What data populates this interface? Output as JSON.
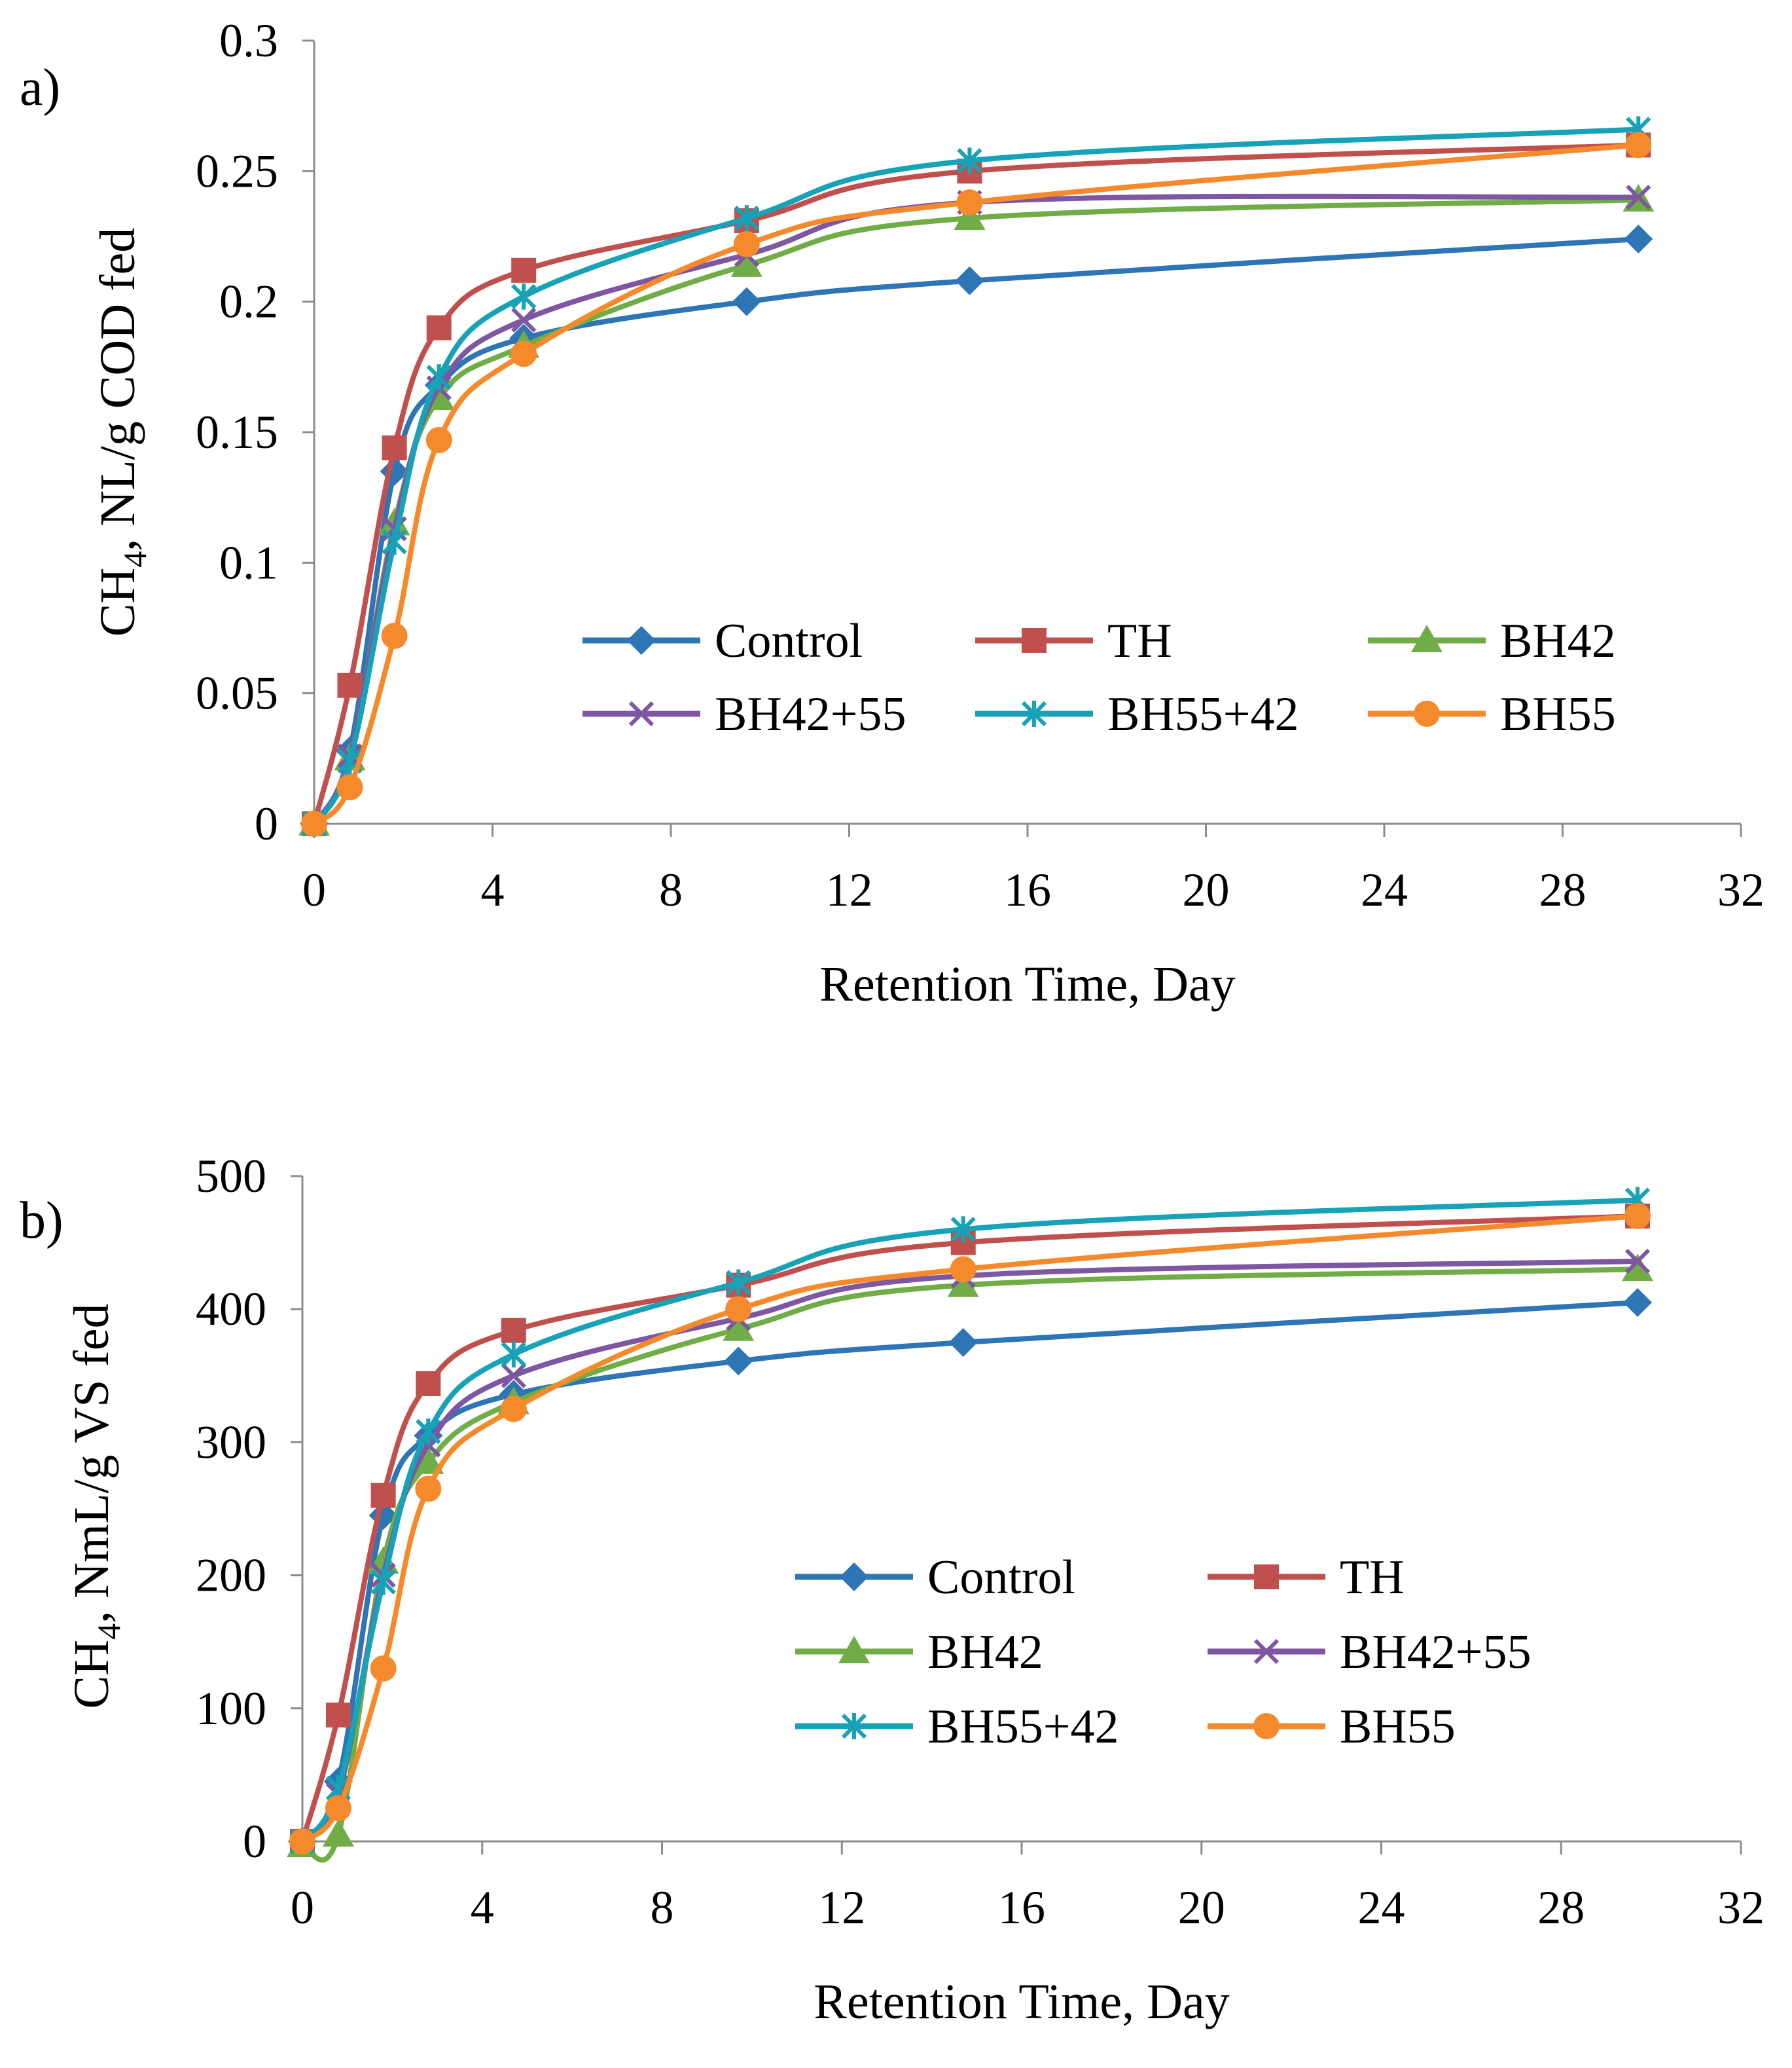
{
  "chart_data": [
    {
      "type": "line",
      "panel_label": "a)",
      "title": "",
      "xlabel": "Retention Time, Day",
      "ylabel": {
        "base": "CH",
        "sub": "4",
        "rest": ", NL/g COD fed"
      },
      "xlim": [
        0,
        32
      ],
      "ylim": [
        0,
        0.3
      ],
      "xticks": [
        "0",
        "4",
        "8",
        "12",
        "16",
        "20",
        "24",
        "28",
        "32"
      ],
      "yticks": [
        "0",
        "0.05",
        "0.1",
        "0.15",
        "0.2",
        "0.25",
        "0.3"
      ],
      "legend_columns": 3,
      "series": [
        {
          "name": "Control",
          "color": "#2E75B6",
          "marker": "diamond",
          "x": [
            0,
            0.8,
            1.8,
            2.8,
            4.7,
            9.7,
            14.7,
            29.7
          ],
          "y": [
            0,
            0.028,
            0.135,
            0.168,
            0.186,
            0.2,
            0.208,
            0.224
          ]
        },
        {
          "name": "TH",
          "color": "#C0504D",
          "marker": "square",
          "x": [
            0,
            0.8,
            1.8,
            2.8,
            4.7,
            9.7,
            14.7,
            29.7
          ],
          "y": [
            0,
            0.053,
            0.144,
            0.19,
            0.212,
            0.231,
            0.25,
            0.26
          ]
        },
        {
          "name": "BH42",
          "color": "#70AD47",
          "marker": "triangle",
          "x": [
            0,
            0.8,
            1.8,
            2.8,
            4.7,
            9.7,
            14.7,
            29.7
          ],
          "y": [
            0,
            0.025,
            0.115,
            0.163,
            0.183,
            0.214,
            0.232,
            0.239
          ]
        },
        {
          "name": "BH42+55",
          "color": "#7E57A3",
          "marker": "x",
          "x": [
            0,
            0.8,
            1.8,
            2.8,
            4.7,
            9.7,
            14.7,
            29.7
          ],
          "y": [
            0,
            0.026,
            0.113,
            0.167,
            0.193,
            0.218,
            0.238,
            0.24
          ]
        },
        {
          "name": "BH55+42",
          "color": "#17A2B8",
          "marker": "asterisk",
          "x": [
            0,
            0.8,
            1.8,
            2.8,
            4.7,
            9.7,
            14.7,
            29.7
          ],
          "y": [
            0,
            0.024,
            0.108,
            0.171,
            0.202,
            0.232,
            0.254,
            0.266
          ]
        },
        {
          "name": "BH55",
          "color": "#F58A2C",
          "marker": "circle",
          "x": [
            0,
            0.8,
            1.8,
            2.8,
            4.7,
            9.7,
            14.7,
            29.7
          ],
          "y": [
            0,
            0.014,
            0.072,
            0.147,
            0.18,
            0.222,
            0.238,
            0.26
          ]
        }
      ]
    },
    {
      "type": "line",
      "panel_label": "b)",
      "title": "",
      "xlabel": "Retention Time, Day",
      "ylabel": {
        "base": "CH",
        "sub": "4",
        "rest": ", NmL/g VS fed"
      },
      "xlim": [
        0,
        32
      ],
      "ylim": [
        0,
        500
      ],
      "xticks": [
        "0",
        "4",
        "8",
        "12",
        "16",
        "20",
        "24",
        "28",
        "32"
      ],
      "yticks": [
        "0",
        "100",
        "200",
        "300",
        "400",
        "500"
      ],
      "legend_columns": 2,
      "series": [
        {
          "name": "Control",
          "color": "#2E75B6",
          "marker": "diamond",
          "x": [
            0,
            0.8,
            1.8,
            2.8,
            4.7,
            9.7,
            14.7,
            29.7
          ],
          "y": [
            0,
            45,
            245,
            305,
            336,
            361,
            375,
            405
          ]
        },
        {
          "name": "TH",
          "color": "#C0504D",
          "marker": "square",
          "x": [
            0,
            0.8,
            1.8,
            2.8,
            4.7,
            9.7,
            14.7,
            29.7
          ],
          "y": [
            0,
            95,
            260,
            344,
            384,
            418,
            450,
            470
          ]
        },
        {
          "name": "BH42",
          "color": "#70AD47",
          "marker": "triangle",
          "x": [
            0,
            0.8,
            1.8,
            2.8,
            4.7,
            9.7,
            14.7,
            29.7
          ],
          "y": [
            -3,
            5,
            210,
            285,
            330,
            385,
            418,
            430
          ]
        },
        {
          "name": "BH42+55",
          "color": "#7E57A3",
          "marker": "x",
          "x": [
            0,
            0.8,
            1.8,
            2.8,
            4.7,
            9.7,
            14.7,
            29.7
          ],
          "y": [
            0,
            35,
            200,
            298,
            350,
            393,
            425,
            436
          ]
        },
        {
          "name": "BH55+42",
          "color": "#17A2B8",
          "marker": "asterisk",
          "x": [
            0,
            0.8,
            1.8,
            2.8,
            4.7,
            9.7,
            14.7,
            29.7
          ],
          "y": [
            0,
            40,
            195,
            308,
            366,
            420,
            460,
            482
          ]
        },
        {
          "name": "BH55",
          "color": "#F58A2C",
          "marker": "circle",
          "x": [
            0,
            0.8,
            1.8,
            2.8,
            4.7,
            9.7,
            14.7,
            29.7
          ],
          "y": [
            0,
            25,
            130,
            265,
            325,
            400,
            430,
            470
          ]
        }
      ]
    }
  ]
}
